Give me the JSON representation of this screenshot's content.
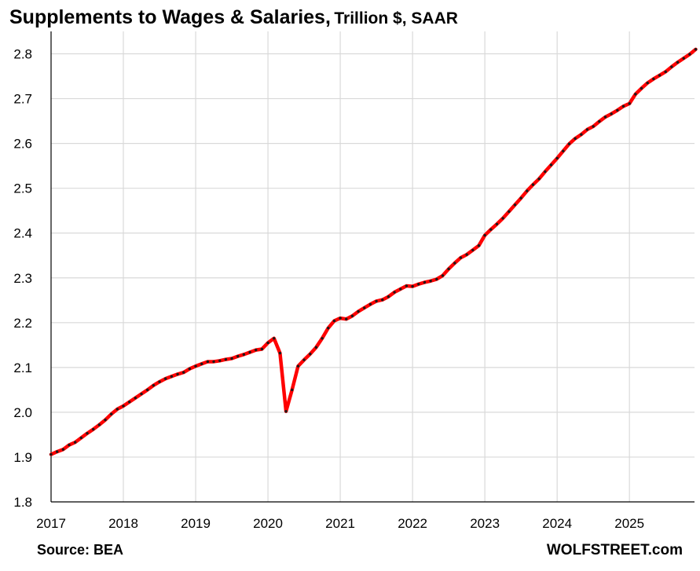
{
  "title": {
    "main": "Supplements to Wages & Salaries,",
    "sub": "Trillion $, SAAR"
  },
  "source": "Source: BEA",
  "brand": "WOLFSTREET.com",
  "colors": {
    "line": "#ff0000",
    "marker": "#1a1a1a",
    "grid": "#d9d9d9",
    "axis": "#000000"
  },
  "chart_data": {
    "type": "line",
    "title": "Supplements to Wages & Salaries, Trillion $, SAAR",
    "xlabel": "",
    "ylabel": "",
    "xlim": [
      2017,
      2025.9
    ],
    "ylim": [
      1.8,
      2.85
    ],
    "yticks": [
      "1.8",
      "1.9",
      "2.0",
      "2.1",
      "2.2",
      "2.3",
      "2.4",
      "2.5",
      "2.6",
      "2.7",
      "2.8"
    ],
    "xticks": [
      "2017",
      "2018",
      "2019",
      "2020",
      "2021",
      "2022",
      "2023",
      "2024",
      "2025"
    ],
    "grid": true,
    "legend": "none",
    "series": [
      {
        "name": "",
        "x": [
          "2017-01",
          "2017-02",
          "2017-03",
          "2017-04",
          "2017-05",
          "2017-06",
          "2017-07",
          "2017-08",
          "2017-09",
          "2017-10",
          "2017-11",
          "2017-12",
          "2018-01",
          "2018-02",
          "2018-03",
          "2018-04",
          "2018-05",
          "2018-06",
          "2018-07",
          "2018-08",
          "2018-09",
          "2018-10",
          "2018-11",
          "2018-12",
          "2019-01",
          "2019-02",
          "2019-03",
          "2019-04",
          "2019-05",
          "2019-06",
          "2019-07",
          "2019-08",
          "2019-09",
          "2019-10",
          "2019-11",
          "2019-12",
          "2020-01",
          "2020-02",
          "2020-03",
          "2020-04",
          "2020-05",
          "2020-06",
          "2020-07",
          "2020-08",
          "2020-09",
          "2020-10",
          "2020-11",
          "2020-12",
          "2021-01",
          "2021-02",
          "2021-03",
          "2021-04",
          "2021-05",
          "2021-06",
          "2021-07",
          "2021-08",
          "2021-09",
          "2021-10",
          "2021-11",
          "2021-12",
          "2022-01",
          "2022-02",
          "2022-03",
          "2022-04",
          "2022-05",
          "2022-06",
          "2022-07",
          "2022-08",
          "2022-09",
          "2022-10",
          "2022-11",
          "2022-12",
          "2023-01",
          "2023-02",
          "2023-03",
          "2023-04",
          "2023-05",
          "2023-06",
          "2023-07",
          "2023-08",
          "2023-09",
          "2023-10",
          "2023-11",
          "2023-12",
          "2024-01",
          "2024-02",
          "2024-03",
          "2024-04",
          "2024-05",
          "2024-06",
          "2024-07",
          "2024-08",
          "2024-09",
          "2024-10",
          "2024-11",
          "2024-12",
          "2025-01",
          "2025-02",
          "2025-03",
          "2025-04",
          "2025-05",
          "2025-06",
          "2025-07",
          "2025-08",
          "2025-09",
          "2025-10",
          "2025-11",
          "2025-12"
        ],
        "values": [
          1.906,
          1.912,
          1.917,
          1.927,
          1.933,
          1.943,
          1.953,
          1.962,
          1.972,
          1.983,
          1.996,
          2.007,
          2.014,
          2.023,
          2.032,
          2.041,
          2.05,
          2.06,
          2.068,
          2.075,
          2.08,
          2.085,
          2.089,
          2.097,
          2.103,
          2.108,
          2.113,
          2.113,
          2.115,
          2.118,
          2.12,
          2.125,
          2.129,
          2.134,
          2.139,
          2.141,
          2.155,
          2.165,
          2.132,
          2.002,
          2.05,
          2.103,
          2.117,
          2.13,
          2.145,
          2.165,
          2.188,
          2.204,
          2.21,
          2.208,
          2.215,
          2.225,
          2.233,
          2.241,
          2.248,
          2.251,
          2.258,
          2.268,
          2.275,
          2.282,
          2.281,
          2.286,
          2.29,
          2.293,
          2.297,
          2.305,
          2.32,
          2.333,
          2.345,
          2.352,
          2.362,
          2.372,
          2.395,
          2.408,
          2.42,
          2.433,
          2.448,
          2.463,
          2.478,
          2.494,
          2.508,
          2.521,
          2.537,
          2.552,
          2.567,
          2.583,
          2.599,
          2.611,
          2.62,
          2.631,
          2.638,
          2.649,
          2.659,
          2.666,
          2.674,
          2.683,
          2.689,
          2.71,
          2.723,
          2.735,
          2.744,
          2.752,
          2.76,
          2.771,
          2.781,
          2.79,
          2.799,
          2.81
        ]
      }
    ]
  }
}
